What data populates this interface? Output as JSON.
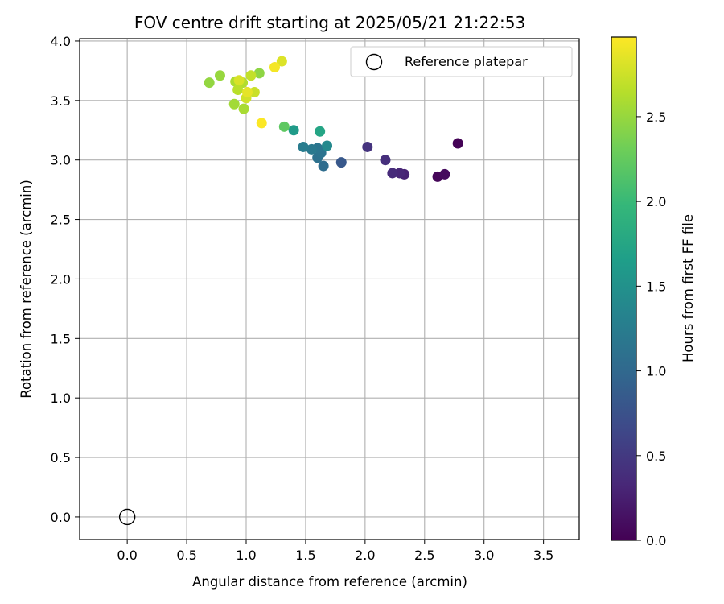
{
  "chart_data": {
    "type": "scatter",
    "title": "FOV centre drift starting at 2025/05/21 21:22:53",
    "xlabel": "Angular distance from reference (arcmin)",
    "ylabel": "Rotation from reference (arcmin)",
    "xlim": [
      -0.4,
      3.8
    ],
    "ylim": [
      -0.19,
      4.02
    ],
    "x_ticks": [
      0.0,
      0.5,
      1.0,
      1.5,
      2.0,
      2.5,
      3.0,
      3.5
    ],
    "x_tick_labels": [
      "0.0",
      "0.5",
      "1.0",
      "1.5",
      "2.0",
      "2.5",
      "3.0",
      "3.5"
    ],
    "y_ticks": [
      0.0,
      0.5,
      1.0,
      1.5,
      2.0,
      2.5,
      3.0,
      3.5,
      4.0
    ],
    "y_tick_labels": [
      "0.0",
      "0.5",
      "1.0",
      "1.5",
      "2.0",
      "2.5",
      "3.0",
      "3.5",
      "4.0"
    ],
    "grid": true,
    "legend": {
      "placement": "top-right",
      "entries": [
        "Reference platepar"
      ]
    },
    "colorbar": {
      "label": "Hours from first FF file",
      "colormap": "viridis",
      "range": [
        0.0,
        2.97
      ],
      "ticks": [
        0.0,
        0.5,
        1.0,
        1.5,
        2.0,
        2.5
      ],
      "tick_labels": [
        "0.0",
        "0.5",
        "1.0",
        "1.5",
        "2.0",
        "2.5"
      ]
    },
    "reference_point": {
      "name": "Reference platepar",
      "x": 0.0,
      "y": 0.0
    },
    "series": [
      {
        "points": [
          {
            "x": 2.78,
            "y": 3.14,
            "c": 0.02
          },
          {
            "x": 2.61,
            "y": 2.86,
            "c": 0.05
          },
          {
            "x": 2.67,
            "y": 2.88,
            "c": 0.08
          },
          {
            "x": 2.33,
            "y": 2.88,
            "c": 0.28
          },
          {
            "x": 2.29,
            "y": 2.89,
            "c": 0.32
          },
          {
            "x": 2.23,
            "y": 2.89,
            "c": 0.36
          },
          {
            "x": 2.17,
            "y": 3.0,
            "c": 0.4
          },
          {
            "x": 2.02,
            "y": 3.11,
            "c": 0.44
          },
          {
            "x": 1.8,
            "y": 2.98,
            "c": 0.82
          },
          {
            "x": 1.65,
            "y": 2.95,
            "c": 1.05
          },
          {
            "x": 1.6,
            "y": 3.02,
            "c": 1.1
          },
          {
            "x": 1.63,
            "y": 3.06,
            "c": 1.13
          },
          {
            "x": 1.6,
            "y": 3.1,
            "c": 1.16
          },
          {
            "x": 1.55,
            "y": 3.09,
            "c": 1.2
          },
          {
            "x": 1.48,
            "y": 3.11,
            "c": 1.24
          },
          {
            "x": 1.68,
            "y": 3.12,
            "c": 1.4
          },
          {
            "x": 1.4,
            "y": 3.25,
            "c": 1.62
          },
          {
            "x": 1.62,
            "y": 3.24,
            "c": 1.74
          },
          {
            "x": 1.32,
            "y": 3.28,
            "c": 2.22
          },
          {
            "x": 0.69,
            "y": 3.65,
            "c": 2.48
          },
          {
            "x": 0.78,
            "y": 3.71,
            "c": 2.5
          },
          {
            "x": 1.11,
            "y": 3.73,
            "c": 2.46
          },
          {
            "x": 0.9,
            "y": 3.47,
            "c": 2.55
          },
          {
            "x": 0.98,
            "y": 3.43,
            "c": 2.58
          },
          {
            "x": 0.91,
            "y": 3.66,
            "c": 2.6
          },
          {
            "x": 0.97,
            "y": 3.65,
            "c": 2.62
          },
          {
            "x": 0.93,
            "y": 3.59,
            "c": 2.66
          },
          {
            "x": 1.04,
            "y": 3.71,
            "c": 2.7
          },
          {
            "x": 1.07,
            "y": 3.57,
            "c": 2.73
          },
          {
            "x": 1.0,
            "y": 3.52,
            "c": 2.76
          },
          {
            "x": 0.94,
            "y": 3.67,
            "c": 2.8
          },
          {
            "x": 1.01,
            "y": 3.57,
            "c": 2.86
          },
          {
            "x": 1.3,
            "y": 3.83,
            "c": 2.82
          },
          {
            "x": 1.24,
            "y": 3.78,
            "c": 2.93
          },
          {
            "x": 1.13,
            "y": 3.31,
            "c": 2.96
          }
        ]
      }
    ]
  }
}
